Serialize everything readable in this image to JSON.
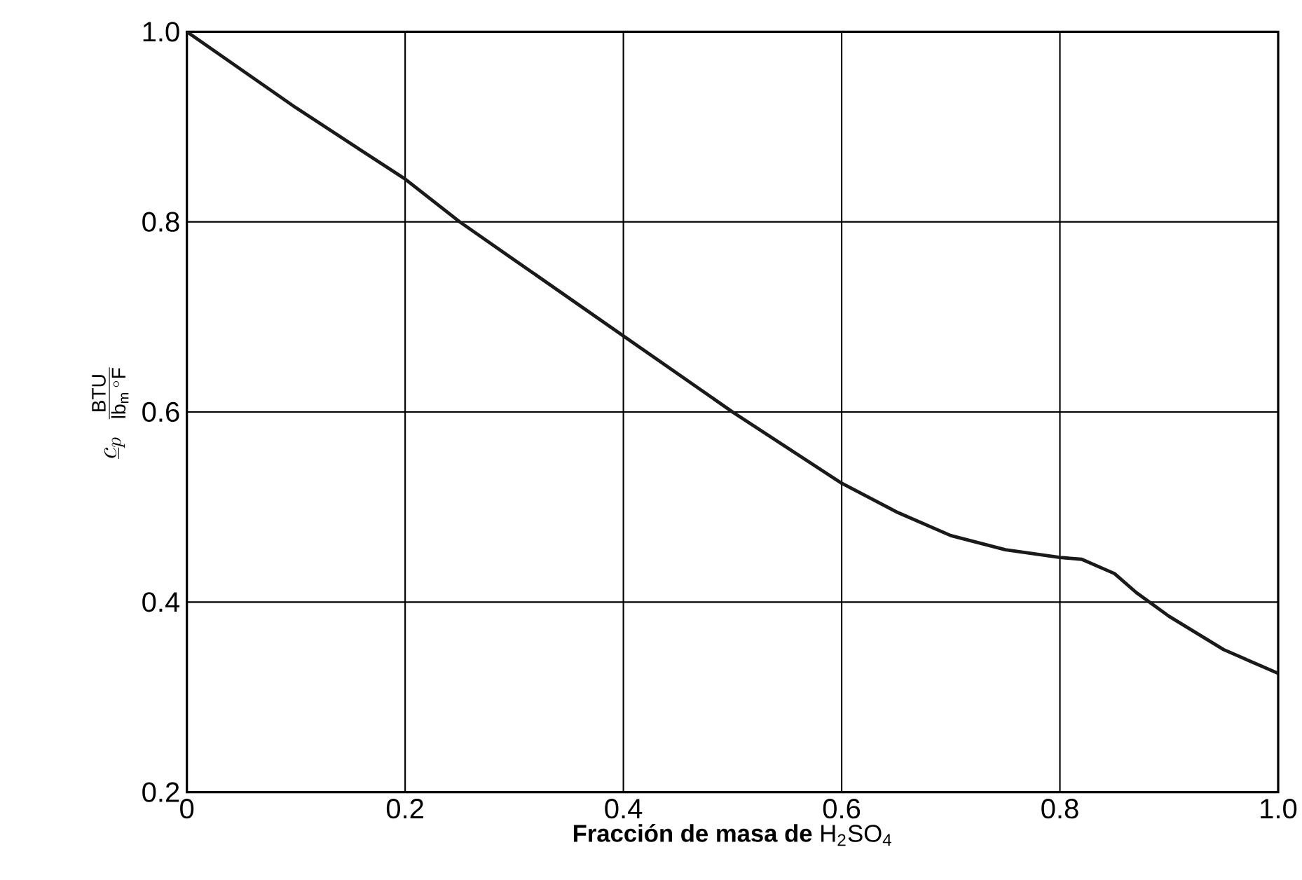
{
  "chart_data": {
    "type": "line",
    "xlabel": "**Fracción de masa de** H$_{2}$SO$_{4}$",
    "ylabel": "\\underline{c}_{p}\\;\\;\\frac{\\mathrm{BTU}}{\\mathrm{lb_{m}}\\,^{\\circ}\\mathrm{F}}",
    "x": [
      0,
      0.1,
      0.2,
      0.25,
      0.3,
      0.4,
      0.5,
      0.6,
      0.65,
      0.7,
      0.75,
      0.8,
      0.82,
      0.85,
      0.87,
      0.9,
      0.95,
      1.0
    ],
    "series": [
      {
        "color": "#1a1a1a",
        "values": [
          1.0,
          0.92,
          0.845,
          0.8,
          0.76,
          0.68,
          0.6,
          0.525,
          0.495,
          0.47,
          0.455,
          0.447,
          0.445,
          0.43,
          0.41,
          0.385,
          0.35,
          0.325
        ]
      }
    ],
    "xlim": [
      0,
      1.0
    ],
    "ylim": [
      0.2,
      1.0
    ],
    "xticks": [
      0,
      0.2,
      0.4,
      0.6,
      0.8,
      {
        "value": 1.0,
        "label": "1.0"
      }
    ],
    "yticks": [
      0.2,
      0.4,
      0.6,
      0.8,
      {
        "value": 1.0,
        "label": "1.0"
      }
    ],
    "grid": true,
    "marker": "none",
    "line_style": "solid"
  }
}
